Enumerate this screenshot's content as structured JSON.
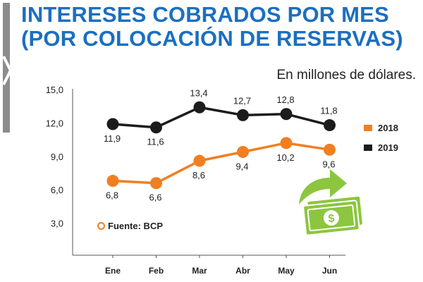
{
  "title_line1": "INTERESES COBRADOS POR MES",
  "title_line2": "(POR COLOCACIÓN DE RESERVAS)",
  "subtitle": "En millones de dólares.",
  "source": "Fuente: BCP",
  "colors": {
    "title": "#1b6fc0",
    "series_2018": "#f07f21",
    "series_2019": "#1c1c1c",
    "icon_green": "#8cc63f",
    "side_bar": "#8c8c8c"
  },
  "icons": [
    "money-bills-icon",
    "curved-arrow-up-icon",
    "dollar-sign-icon"
  ],
  "chart_data": {
    "type": "line",
    "categories": [
      "Ene",
      "Feb",
      "Mar",
      "Abr",
      "May",
      "Jun"
    ],
    "yticks": [
      "3,0",
      "6,0",
      "9,0",
      "12,0",
      "15,0"
    ],
    "ylim": [
      0,
      15
    ],
    "grid": false,
    "legend_position": "right",
    "series": [
      {
        "name": "2018",
        "values": [
          6.8,
          6.6,
          8.6,
          9.4,
          10.2,
          9.6
        ],
        "labels": [
          "6,8",
          "6,6",
          "8,6",
          "9,4",
          "10,2",
          "9,6"
        ],
        "color": "#f07f21"
      },
      {
        "name": "2019",
        "values": [
          11.9,
          11.6,
          13.4,
          12.7,
          12.8,
          11.8
        ],
        "labels": [
          "11,9",
          "11,6",
          "13,4",
          "12,7",
          "12,8",
          "11,8"
        ],
        "color": "#1c1c1c"
      }
    ]
  }
}
